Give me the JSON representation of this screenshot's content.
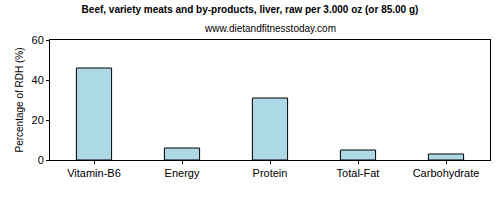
{
  "chart_data": {
    "type": "bar",
    "title": "Beef, variety meats and by-products, liver, raw per 3.000 oz (or 85.00 g)",
    "subtitle": "www.dietandfitnesstoday.com",
    "y_label": "Percentage of RDH (%)",
    "categories": [
      "Vitamin-B6",
      "Energy",
      "Protein",
      "Total-Fat",
      "Carbohydrate"
    ],
    "values": [
      46,
      6,
      31,
      5,
      3
    ],
    "color": "#add8e6",
    "ylim": [
      0,
      60
    ],
    "yticks": [
      0,
      20,
      40,
      60
    ],
    "grid": false
  }
}
